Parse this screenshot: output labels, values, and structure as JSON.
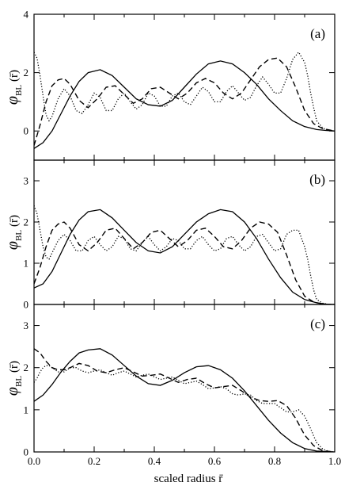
{
  "chart_data": [
    {
      "type": "line",
      "panel_label": "(a)",
      "ylabel": {
        "symbol": "φ",
        "subscript": "BL",
        "argument": "(r̄)"
      },
      "xlim": [
        0,
        1
      ],
      "ylim": [
        -1,
        4
      ],
      "yticks": [
        "0",
        "2",
        "4"
      ],
      "ytick_values": [
        0,
        2,
        4
      ],
      "series": [
        {
          "style": "solid",
          "x": [
            0,
            0.03,
            0.06,
            0.09,
            0.12,
            0.15,
            0.18,
            0.22,
            0.26,
            0.3,
            0.34,
            0.38,
            0.42,
            0.46,
            0.5,
            0.54,
            0.58,
            0.62,
            0.66,
            0.7,
            0.74,
            0.78,
            0.82,
            0.86,
            0.9,
            0.94,
            0.97,
            1.0
          ],
          "y": [
            -0.6,
            -0.4,
            0.0,
            0.6,
            1.2,
            1.7,
            2.0,
            2.1,
            1.9,
            1.5,
            1.1,
            0.9,
            0.85,
            1.05,
            1.5,
            1.95,
            2.3,
            2.4,
            2.3,
            2.0,
            1.6,
            1.1,
            0.7,
            0.35,
            0.15,
            0.05,
            0.02,
            0.0
          ]
        },
        {
          "style": "dashed",
          "x": [
            0,
            0.02,
            0.04,
            0.06,
            0.08,
            0.1,
            0.12,
            0.15,
            0.18,
            0.21,
            0.24,
            0.27,
            0.3,
            0.33,
            0.36,
            0.39,
            0.42,
            0.45,
            0.48,
            0.51,
            0.54,
            0.57,
            0.6,
            0.63,
            0.66,
            0.69,
            0.72,
            0.75,
            0.78,
            0.81,
            0.84,
            0.87,
            0.9,
            0.93,
            0.96,
            1.0
          ],
          "y": [
            -0.5,
            0.2,
            1.0,
            1.55,
            1.75,
            1.8,
            1.6,
            1.05,
            0.8,
            1.1,
            1.5,
            1.55,
            1.25,
            0.95,
            1.1,
            1.45,
            1.5,
            1.3,
            1.1,
            1.3,
            1.65,
            1.8,
            1.65,
            1.3,
            1.1,
            1.3,
            1.75,
            2.2,
            2.45,
            2.5,
            2.2,
            1.5,
            0.7,
            0.25,
            0.08,
            0.0
          ]
        },
        {
          "style": "dotted",
          "x": [
            0,
            0.01,
            0.02,
            0.03,
            0.04,
            0.05,
            0.06,
            0.08,
            0.1,
            0.12,
            0.14,
            0.16,
            0.18,
            0.2,
            0.22,
            0.24,
            0.26,
            0.28,
            0.3,
            0.32,
            0.34,
            0.36,
            0.38,
            0.4,
            0.42,
            0.44,
            0.46,
            0.48,
            0.5,
            0.52,
            0.54,
            0.56,
            0.58,
            0.6,
            0.62,
            0.64,
            0.66,
            0.68,
            0.7,
            0.72,
            0.74,
            0.76,
            0.78,
            0.8,
            0.82,
            0.84,
            0.86,
            0.88,
            0.9,
            0.91,
            0.92,
            0.93,
            0.94,
            0.96,
            0.98,
            1.0
          ],
          "y": [
            2.7,
            2.5,
            1.9,
            1.2,
            0.55,
            0.35,
            0.5,
            1.1,
            1.45,
            1.2,
            0.7,
            0.6,
            0.9,
            1.3,
            1.15,
            0.7,
            0.7,
            1.1,
            1.3,
            1.0,
            0.75,
            0.9,
            1.3,
            1.2,
            0.85,
            0.85,
            1.2,
            1.3,
            1.0,
            0.9,
            1.2,
            1.5,
            1.35,
            1.0,
            1.0,
            1.35,
            1.55,
            1.3,
            1.05,
            1.15,
            1.55,
            1.85,
            1.6,
            1.3,
            1.3,
            1.8,
            2.45,
            2.7,
            2.35,
            1.9,
            1.3,
            0.8,
            0.35,
            0.1,
            0.02,
            0.0
          ]
        }
      ]
    },
    {
      "type": "line",
      "panel_label": "(b)",
      "ylabel": {
        "symbol": "φ",
        "subscript": "BL",
        "argument": "(r̄)"
      },
      "xlim": [
        0,
        1
      ],
      "ylim": [
        0,
        3.5
      ],
      "yticks": [
        "0",
        "1",
        "2",
        "3"
      ],
      "ytick_values": [
        0,
        1,
        2,
        3
      ],
      "series": [
        {
          "style": "solid",
          "x": [
            0,
            0.03,
            0.06,
            0.09,
            0.12,
            0.15,
            0.18,
            0.22,
            0.26,
            0.3,
            0.34,
            0.38,
            0.42,
            0.46,
            0.5,
            0.54,
            0.58,
            0.62,
            0.66,
            0.7,
            0.74,
            0.78,
            0.82,
            0.86,
            0.9,
            0.94,
            0.97,
            1.0
          ],
          "y": [
            0.4,
            0.5,
            0.8,
            1.25,
            1.7,
            2.05,
            2.25,
            2.3,
            2.1,
            1.8,
            1.5,
            1.3,
            1.25,
            1.4,
            1.7,
            2.0,
            2.2,
            2.3,
            2.25,
            2.0,
            1.6,
            1.1,
            0.65,
            0.3,
            0.12,
            0.04,
            0.01,
            0.0
          ]
        },
        {
          "style": "dashed",
          "x": [
            0,
            0.02,
            0.04,
            0.06,
            0.08,
            0.1,
            0.12,
            0.15,
            0.18,
            0.21,
            0.24,
            0.27,
            0.3,
            0.33,
            0.36,
            0.39,
            0.42,
            0.45,
            0.48,
            0.51,
            0.54,
            0.57,
            0.6,
            0.63,
            0.66,
            0.69,
            0.72,
            0.75,
            0.78,
            0.81,
            0.84,
            0.87,
            0.9,
            0.93,
            0.96,
            1.0
          ],
          "y": [
            0.5,
            0.9,
            1.4,
            1.8,
            1.95,
            2.0,
            1.85,
            1.45,
            1.3,
            1.5,
            1.8,
            1.85,
            1.6,
            1.35,
            1.5,
            1.75,
            1.8,
            1.6,
            1.4,
            1.55,
            1.8,
            1.85,
            1.65,
            1.4,
            1.35,
            1.55,
            1.85,
            2.0,
            1.95,
            1.75,
            1.2,
            0.6,
            0.2,
            0.06,
            0.01,
            0.0
          ]
        },
        {
          "style": "dotted",
          "x": [
            0,
            0.01,
            0.02,
            0.03,
            0.04,
            0.05,
            0.06,
            0.08,
            0.1,
            0.12,
            0.14,
            0.16,
            0.18,
            0.2,
            0.22,
            0.24,
            0.26,
            0.28,
            0.3,
            0.32,
            0.34,
            0.36,
            0.38,
            0.4,
            0.42,
            0.44,
            0.46,
            0.48,
            0.5,
            0.52,
            0.54,
            0.56,
            0.58,
            0.6,
            0.62,
            0.64,
            0.66,
            0.68,
            0.7,
            0.72,
            0.74,
            0.76,
            0.78,
            0.8,
            0.82,
            0.84,
            0.86,
            0.88,
            0.9,
            0.91,
            0.92,
            0.93,
            0.94,
            0.96,
            0.98,
            1.0
          ],
          "y": [
            2.4,
            2.2,
            1.8,
            1.4,
            1.15,
            1.1,
            1.25,
            1.55,
            1.7,
            1.55,
            1.3,
            1.3,
            1.55,
            1.65,
            1.45,
            1.3,
            1.4,
            1.65,
            1.6,
            1.35,
            1.3,
            1.5,
            1.65,
            1.45,
            1.3,
            1.4,
            1.6,
            1.55,
            1.35,
            1.35,
            1.55,
            1.65,
            1.45,
            1.3,
            1.35,
            1.6,
            1.65,
            1.45,
            1.3,
            1.4,
            1.65,
            1.7,
            1.5,
            1.3,
            1.35,
            1.7,
            1.8,
            1.8,
            1.4,
            1.1,
            0.7,
            0.35,
            0.12,
            0.03,
            0.0,
            0.0
          ]
        }
      ]
    },
    {
      "type": "line",
      "panel_label": "(c)",
      "ylabel": {
        "symbol": "φ",
        "subscript": "BL",
        "argument": "(r̄)"
      },
      "xlim": [
        0,
        1
      ],
      "ylim": [
        0,
        3.5
      ],
      "yticks": [
        "0",
        "1",
        "2",
        "3"
      ],
      "ytick_values": [
        0,
        1,
        2,
        3
      ],
      "xticks": [
        "0.0",
        "0.2",
        "0.4",
        "0.6",
        "0.8",
        "1.0"
      ],
      "xtick_values": [
        0,
        0.2,
        0.4,
        0.6,
        0.8,
        1.0
      ],
      "xlabel": "scaled radius r̄",
      "series": [
        {
          "style": "solid",
          "x": [
            0,
            0.03,
            0.06,
            0.09,
            0.12,
            0.15,
            0.18,
            0.22,
            0.26,
            0.3,
            0.34,
            0.38,
            0.42,
            0.46,
            0.5,
            0.54,
            0.58,
            0.62,
            0.66,
            0.7,
            0.74,
            0.78,
            0.82,
            0.86,
            0.9,
            0.94,
            0.97,
            1.0
          ],
          "y": [
            1.2,
            1.35,
            1.6,
            1.9,
            2.15,
            2.35,
            2.42,
            2.45,
            2.3,
            2.05,
            1.8,
            1.62,
            1.58,
            1.7,
            1.88,
            2.02,
            2.05,
            1.95,
            1.75,
            1.45,
            1.1,
            0.75,
            0.45,
            0.22,
            0.08,
            0.02,
            0.01,
            0.0
          ]
        },
        {
          "style": "dashed",
          "x": [
            0,
            0.02,
            0.04,
            0.06,
            0.08,
            0.1,
            0.12,
            0.15,
            0.18,
            0.21,
            0.24,
            0.27,
            0.3,
            0.33,
            0.36,
            0.39,
            0.42,
            0.45,
            0.48,
            0.51,
            0.54,
            0.57,
            0.6,
            0.63,
            0.66,
            0.69,
            0.72,
            0.75,
            0.78,
            0.81,
            0.84,
            0.87,
            0.9,
            0.93,
            0.96,
            1.0
          ],
          "y": [
            2.45,
            2.35,
            2.15,
            2.0,
            1.95,
            1.95,
            2.0,
            2.1,
            2.05,
            1.92,
            1.88,
            1.95,
            2.0,
            1.9,
            1.8,
            1.82,
            1.85,
            1.75,
            1.65,
            1.72,
            1.75,
            1.62,
            1.52,
            1.55,
            1.58,
            1.45,
            1.3,
            1.22,
            1.2,
            1.22,
            1.1,
            0.8,
            0.4,
            0.15,
            0.03,
            0.0
          ]
        },
        {
          "style": "dotted",
          "x": [
            0,
            0.01,
            0.02,
            0.03,
            0.04,
            0.05,
            0.06,
            0.08,
            0.1,
            0.12,
            0.14,
            0.16,
            0.18,
            0.2,
            0.22,
            0.24,
            0.26,
            0.28,
            0.3,
            0.32,
            0.34,
            0.36,
            0.38,
            0.4,
            0.42,
            0.44,
            0.46,
            0.48,
            0.5,
            0.52,
            0.54,
            0.56,
            0.58,
            0.6,
            0.62,
            0.64,
            0.66,
            0.68,
            0.7,
            0.72,
            0.74,
            0.76,
            0.78,
            0.8,
            0.82,
            0.84,
            0.86,
            0.88,
            0.9,
            0.91,
            0.92,
            0.93,
            0.94,
            0.96,
            0.98,
            1.0
          ],
          "y": [
            1.65,
            1.75,
            1.9,
            2.0,
            2.05,
            2.05,
            2.0,
            1.9,
            1.9,
            2.0,
            2.0,
            1.92,
            1.88,
            1.92,
            1.95,
            1.88,
            1.82,
            1.88,
            1.92,
            1.85,
            1.78,
            1.82,
            1.85,
            1.78,
            1.72,
            1.75,
            1.78,
            1.7,
            1.62,
            1.65,
            1.68,
            1.6,
            1.5,
            1.52,
            1.55,
            1.5,
            1.38,
            1.35,
            1.38,
            1.35,
            1.22,
            1.15,
            1.15,
            1.15,
            1.05,
            0.95,
            0.95,
            1.0,
            0.85,
            0.7,
            0.55,
            0.38,
            0.22,
            0.07,
            0.01,
            0.0
          ]
        }
      ]
    }
  ]
}
